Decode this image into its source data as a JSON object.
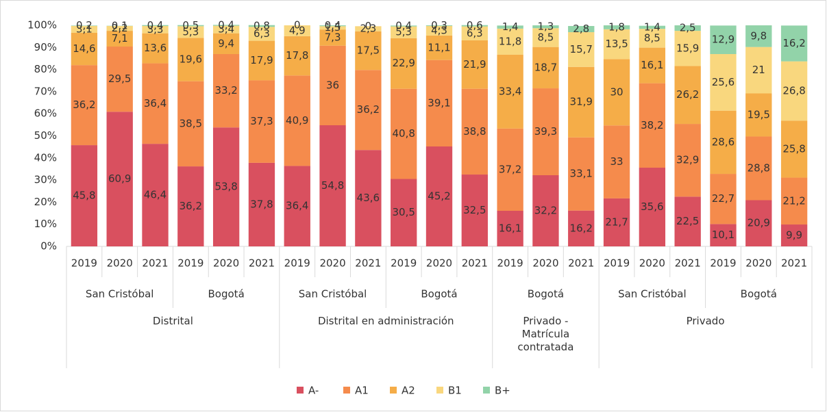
{
  "chart_data": {
    "type": "stacked_bar",
    "groups": [
      {
        "name": "Distrital",
        "subgroups": [
          {
            "name": "San Cristóbal",
            "categories": [
              "2019",
              "2020",
              "2021"
            ]
          },
          {
            "name": "Bogotá",
            "categories": [
              "2019",
              "2020",
              "2021"
            ]
          }
        ]
      },
      {
        "name": "Distrital en administración",
        "subgroups": [
          {
            "name": "San Cristóbal",
            "categories": [
              "2019",
              "2020",
              "2021"
            ]
          },
          {
            "name": "Bogotá",
            "categories": [
              "2019",
              "2020",
              "2021"
            ]
          }
        ]
      },
      {
        "name": "Privado - Matrícula contratada",
        "subgroups": [
          {
            "name": "Bogotá",
            "categories": [
              "2019",
              "2020",
              "2021"
            ]
          }
        ]
      },
      {
        "name": "Privado",
        "subgroups": [
          {
            "name": "San Cristóbal",
            "categories": [
              "2019",
              "2020",
              "2021"
            ]
          },
          {
            "name": "Bogotá",
            "categories": [
              "2019",
              "2020",
              "2021"
            ]
          }
        ]
      }
    ],
    "series": [
      {
        "name": "A-",
        "color": "#d9505f",
        "values": [
          45.8,
          60.9,
          46.4,
          36.2,
          53.8,
          37.8,
          36.4,
          54.8,
          43.6,
          30.5,
          45.2,
          32.5,
          16.1,
          32.2,
          16.2,
          21.7,
          35.6,
          22.5,
          10.1,
          20.9,
          9.9
        ],
        "value_labels": [
          "45,8",
          "60,9",
          "46,4",
          "36,2",
          "53,8",
          "37,8",
          "36,4",
          "54,8",
          "43,6",
          "30,5",
          "45,2",
          "32,5",
          "16,1",
          "32,2",
          "16,2",
          "21,7",
          "35,6",
          "22,5",
          "10,1",
          "20,9",
          "9,9"
        ]
      },
      {
        "name": "A1",
        "color": "#f58b4c",
        "values": [
          36.2,
          29.5,
          36.4,
          38.5,
          33.2,
          37.3,
          40.9,
          36,
          36.2,
          40.8,
          39.1,
          38.8,
          37.2,
          39.3,
          33.1,
          33,
          38.2,
          32.9,
          22.7,
          28.8,
          21.2
        ],
        "value_labels": [
          "36,2",
          "29,5",
          "36,4",
          "38,5",
          "33,2",
          "37,3",
          "40,9",
          "36",
          "36,2",
          "40,8",
          "39,1",
          "38,8",
          "37,2",
          "39,3",
          "33,1",
          "33",
          "38,2",
          "32,9",
          "22,7",
          "28,8",
          "21,2"
        ]
      },
      {
        "name": "A2",
        "color": "#f5ad48",
        "values": [
          14.6,
          7.1,
          13.6,
          19.6,
          9.4,
          17.9,
          17.8,
          7.3,
          17.5,
          22.9,
          11.1,
          21.9,
          33.4,
          18.7,
          31.9,
          30,
          16.1,
          26.2,
          28.6,
          19.5,
          25.8
        ],
        "value_labels": [
          "14,6",
          "7,1",
          "13,6",
          "19,6",
          "9,4",
          "17,9",
          "17,8",
          "7,3",
          "17,5",
          "22,9",
          "11,1",
          "21,9",
          "33,4",
          "18,7",
          "31,9",
          "30",
          "16,1",
          "26,2",
          "28,6",
          "19,5",
          "25,8"
        ]
      },
      {
        "name": "B1",
        "color": "#f9d77e",
        "values": [
          3.1,
          2.2,
          3.3,
          5.3,
          3.4,
          6.3,
          4.9,
          1.5,
          2.3,
          5.3,
          4.3,
          6.3,
          11.8,
          8.5,
          15.7,
          13.5,
          8.5,
          15.9,
          25.6,
          21,
          26.8
        ],
        "value_labels": [
          "3,1",
          "2,2",
          "3,3",
          "5,3",
          "3,4",
          "6,3",
          "4,9",
          "1,5",
          "2,3",
          "5,3",
          "4,3",
          "6,3",
          "11,8",
          "8,5",
          "15,7",
          "13,5",
          "8,5",
          "15,9",
          "25,6",
          "21",
          "26,8"
        ]
      },
      {
        "name": "B+",
        "color": "#92d3a9",
        "values": [
          0.2,
          0.1,
          0.4,
          0.5,
          0.4,
          0.8,
          0,
          0.4,
          0,
          0.4,
          0.3,
          0.6,
          1.4,
          1.3,
          2.8,
          1.8,
          1.4,
          2.5,
          12.9,
          9.8,
          16.2
        ],
        "value_labels": [
          "0,2",
          "0,1",
          "0,4",
          "0,5",
          "0,4",
          "0,8",
          "0",
          "0,4",
          "0",
          "0,4",
          "0,3",
          "0,6",
          "1,4",
          "1,3",
          "2,8",
          "1,8",
          "1,4",
          "2,5",
          "12,9",
          "9,8",
          "16,2"
        ]
      }
    ],
    "ylim": [
      0,
      100
    ],
    "yticks": [
      {
        "value": 0,
        "label": "0%"
      },
      {
        "value": 10,
        "label": "10%"
      },
      {
        "value": 20,
        "label": "20%"
      },
      {
        "value": 30,
        "label": "30%"
      },
      {
        "value": 40,
        "label": "40%"
      },
      {
        "value": 50,
        "label": "50%"
      },
      {
        "value": 60,
        "label": "60%"
      },
      {
        "value": 70,
        "label": "70%"
      },
      {
        "value": 80,
        "label": "80%"
      },
      {
        "value": 90,
        "label": "90%"
      },
      {
        "value": 100,
        "label": "100%"
      }
    ],
    "legend": "bottom"
  }
}
